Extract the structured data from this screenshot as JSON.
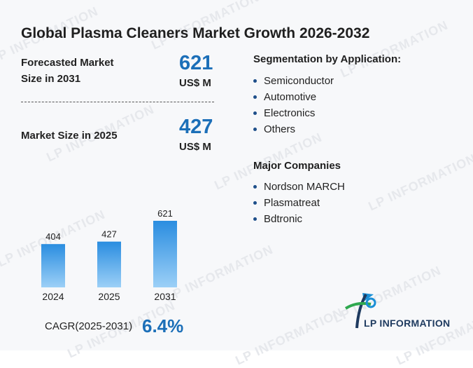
{
  "title": "Global Plasma Cleaners Market Growth 2026-2032",
  "forecast": {
    "label_line1": "Forecasted Market",
    "label_line2": "Size in 2031",
    "value": "621",
    "unit": "US$ M"
  },
  "current": {
    "label": "Market Size in 2025",
    "value": "427",
    "unit": "US$ M"
  },
  "segmentation": {
    "title": "Segmentation by Application:",
    "items": [
      "Semiconductor",
      "Automotive",
      "Electronics",
      "Others"
    ]
  },
  "companies": {
    "title": "Major Companies",
    "items": [
      "Nordson MARCH",
      "Plasmatreat",
      "Bdtronic"
    ]
  },
  "cagr": {
    "label": "CAGR(2025-2031)",
    "value": "6.4%"
  },
  "logo": {
    "text": "LP INFORMATION"
  },
  "watermark": {
    "text": "LP INFORMATION"
  },
  "colors": {
    "accent": "#1c6fb8",
    "bar_top": "#2a8de0",
    "bar_bottom": "#9cd0f7"
  },
  "chart_data": {
    "type": "bar",
    "categories": [
      "2024",
      "2025",
      "2031"
    ],
    "values": [
      404,
      427,
      621
    ],
    "title": "",
    "xlabel": "",
    "ylabel": "",
    "ylim": [
      0,
      621
    ],
    "grid": false,
    "data_labels": [
      "404",
      "427",
      "621"
    ]
  }
}
